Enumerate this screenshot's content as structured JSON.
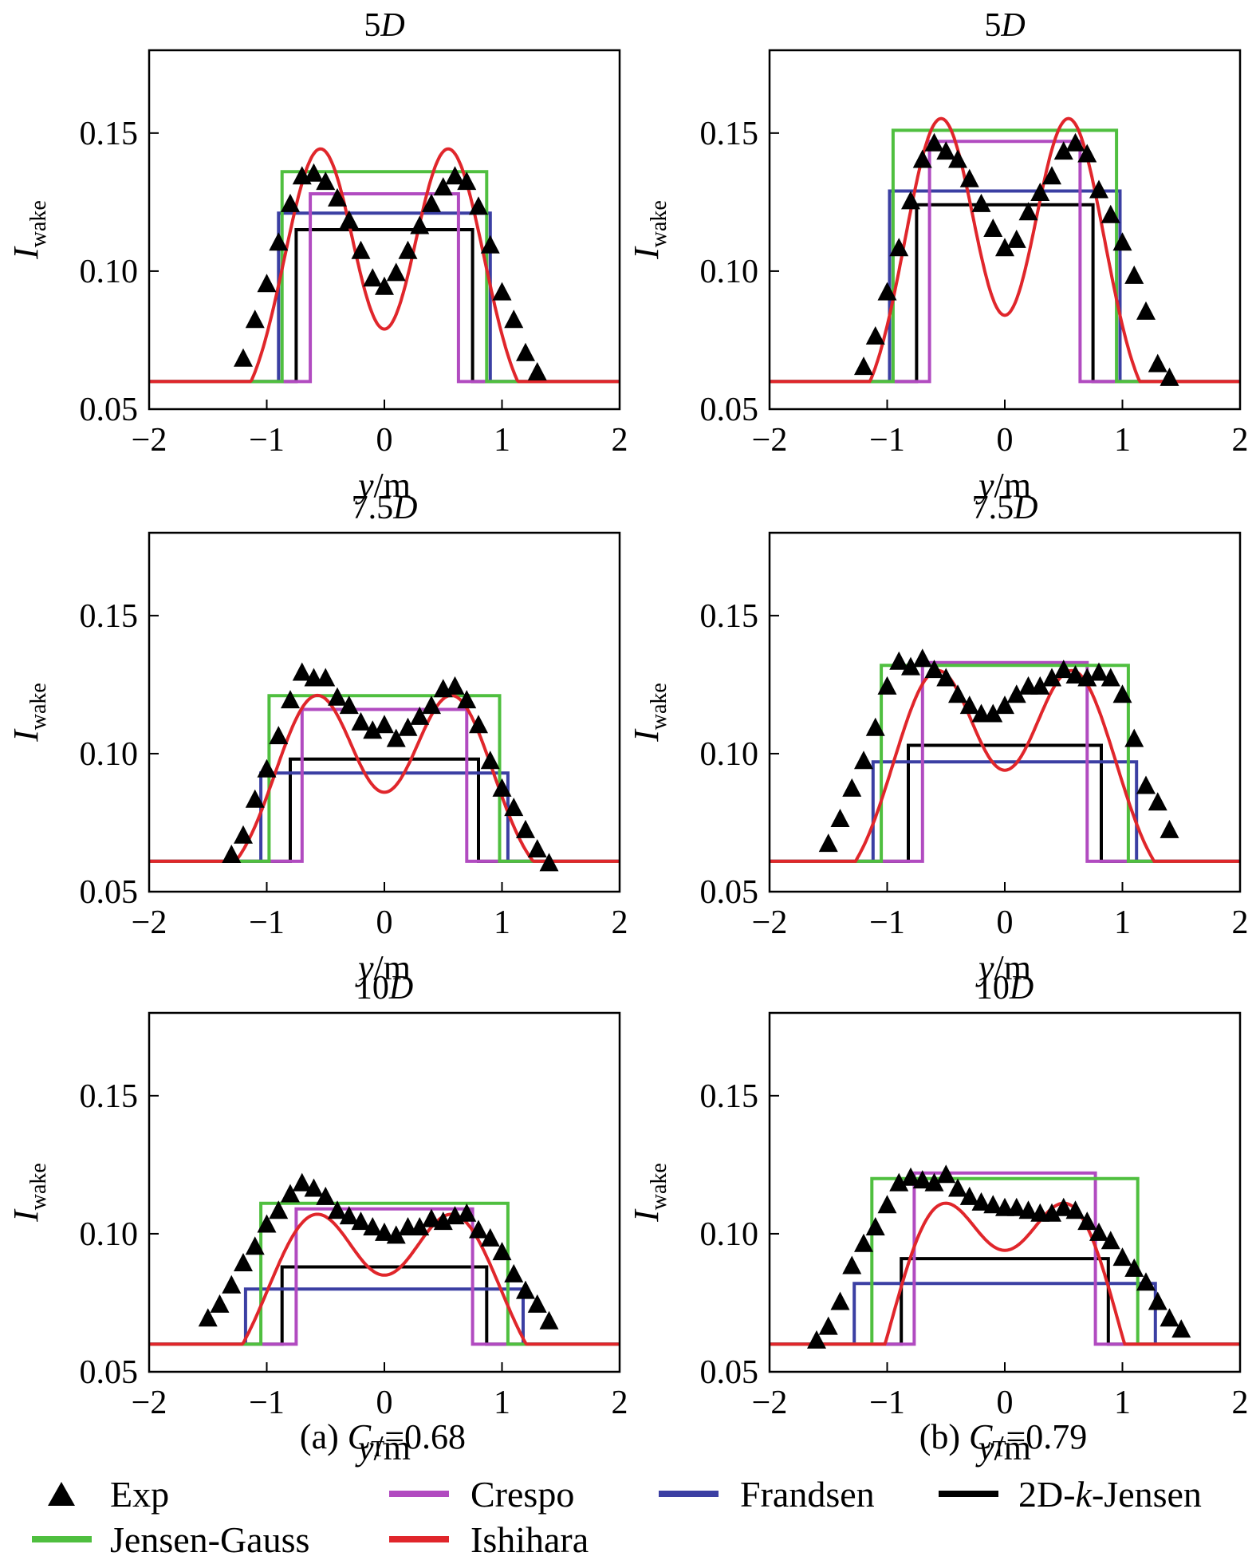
{
  "colors": {
    "Exp": "#000000",
    "Jensen-Gauss": "#4fbf3f",
    "Crespo": "#b14bc0",
    "Ishihara": "#e0262b",
    "Frandsen": "#3b3fa3",
    "2D-k-Jensen": "#000000"
  },
  "legend": {
    "exp": "Exp",
    "jensen_gauss": "Jensen-Gauss",
    "crespo": "Crespo",
    "ishihara": "Ishihara",
    "frandsen": "Frandsen",
    "jensen2d_prefix": "2D-",
    "jensen2d_k": "k",
    "jensen2d_suffix": "-Jensen"
  },
  "captions": {
    "a_prefix": "(a) ",
    "a_var": "C",
    "a_sub": "T",
    "a_value": "=0.68",
    "b_prefix": "(b) ",
    "b_var": "C",
    "b_sub": "T",
    "b_value": "=0.79"
  },
  "axis_text": {
    "ylabel_var": "I",
    "ylabel_sub": "wake",
    "xlabel_var": "y",
    "xlabel_unit": "/m"
  },
  "chart_data": [
    {
      "type": "line",
      "title_num": "5",
      "title_unit": "D",
      "xlabel": "y/m",
      "ylabel": "I_wake",
      "xlim": [
        -2,
        2
      ],
      "ylim": [
        0.05,
        0.18
      ],
      "xticks": [
        -2,
        -1,
        0,
        1,
        2
      ],
      "yticks": [
        0.05,
        0.1,
        0.15
      ],
      "exp": {
        "x": [
          -1.2,
          -1.1,
          -1.0,
          -0.9,
          -0.8,
          -0.7,
          -0.6,
          -0.5,
          -0.4,
          -0.3,
          -0.2,
          -0.1,
          0.0,
          0.1,
          0.2,
          0.3,
          0.4,
          0.5,
          0.6,
          0.7,
          0.8,
          0.9,
          1.0,
          1.1,
          1.2,
          1.3
        ],
        "y": [
          0.068,
          0.082,
          0.095,
          0.11,
          0.124,
          0.134,
          0.135,
          0.132,
          0.126,
          0.118,
          0.107,
          0.097,
          0.094,
          0.099,
          0.107,
          0.116,
          0.124,
          0.13,
          0.134,
          0.132,
          0.123,
          0.109,
          0.092,
          0.082,
          0.07,
          0.063
        ]
      },
      "models": {
        "jensen_gauss": {
          "half_width": 0.87,
          "value": 0.136
        },
        "crespo": {
          "half_width": 0.63,
          "value": 0.128
        },
        "frandsen": {
          "half_width": 0.9,
          "value": 0.121
        },
        "jensen2d": {
          "half_width": 0.75,
          "value": 0.115
        }
      },
      "ishihara": {
        "peak": 0.144,
        "center": 0.079,
        "peak_x": 0.52,
        "sigma": 0.33
      },
      "baseline": 0.06
    },
    {
      "type": "line",
      "title_num": "5",
      "title_unit": "D",
      "xlabel": "y/m",
      "ylabel": "I_wake",
      "xlim": [
        -2,
        2
      ],
      "ylim": [
        0.05,
        0.18
      ],
      "xticks": [
        -2,
        -1,
        0,
        1,
        2
      ],
      "yticks": [
        0.05,
        0.1,
        0.15
      ],
      "exp": {
        "x": [
          -1.2,
          -1.1,
          -1.0,
          -0.9,
          -0.8,
          -0.7,
          -0.6,
          -0.5,
          -0.4,
          -0.3,
          -0.2,
          -0.1,
          0.0,
          0.1,
          0.2,
          0.3,
          0.4,
          0.5,
          0.6,
          0.7,
          0.8,
          0.9,
          1.0,
          1.1,
          1.2,
          1.3,
          1.4
        ],
        "y": [
          0.065,
          0.076,
          0.092,
          0.108,
          0.125,
          0.14,
          0.146,
          0.143,
          0.14,
          0.133,
          0.124,
          0.115,
          0.108,
          0.111,
          0.121,
          0.128,
          0.134,
          0.143,
          0.146,
          0.142,
          0.129,
          0.12,
          0.11,
          0.098,
          0.085,
          0.066,
          0.061
        ]
      },
      "models": {
        "jensen_gauss": {
          "half_width": 0.95,
          "value": 0.151
        },
        "crespo": {
          "half_width": 0.64,
          "value": 0.147
        },
        "frandsen": {
          "half_width": 0.98,
          "value": 0.129
        },
        "jensen2d": {
          "half_width": 0.75,
          "value": 0.124
        }
      },
      "ishihara": {
        "peak": 0.155,
        "center": 0.084,
        "peak_x": 0.52,
        "sigma": 0.33
      },
      "baseline": 0.06
    },
    {
      "type": "line",
      "title_num": "7.5",
      "title_unit": "D",
      "xlabel": "y/m",
      "ylabel": "I_wake",
      "xlim": [
        -2,
        2
      ],
      "ylim": [
        0.05,
        0.18
      ],
      "xticks": [
        -2,
        -1,
        0,
        1,
        2
      ],
      "yticks": [
        0.05,
        0.1,
        0.15
      ],
      "exp": {
        "x": [
          -1.3,
          -1.2,
          -1.1,
          -1.0,
          -0.9,
          -0.8,
          -0.7,
          -0.6,
          -0.5,
          -0.4,
          -0.3,
          -0.2,
          -0.1,
          0.0,
          0.1,
          0.2,
          0.3,
          0.4,
          0.5,
          0.6,
          0.7,
          0.8,
          0.9,
          1.0,
          1.1,
          1.2,
          1.3,
          1.4
        ],
        "y": [
          0.063,
          0.07,
          0.083,
          0.094,
          0.106,
          0.119,
          0.129,
          0.127,
          0.127,
          0.12,
          0.117,
          0.111,
          0.108,
          0.11,
          0.105,
          0.109,
          0.113,
          0.117,
          0.123,
          0.124,
          0.119,
          0.11,
          0.097,
          0.087,
          0.08,
          0.072,
          0.065,
          0.06
        ]
      },
      "models": {
        "jensen_gauss": {
          "half_width": 0.98,
          "value": 0.121
        },
        "crespo": {
          "half_width": 0.7,
          "value": 0.116
        },
        "frandsen": {
          "half_width": 1.05,
          "value": 0.093
        },
        "jensen2d": {
          "half_width": 0.8,
          "value": 0.098
        }
      },
      "ishihara": {
        "peak": 0.121,
        "center": 0.086,
        "peak_x": 0.55,
        "sigma": 0.38
      },
      "baseline": 0.061
    },
    {
      "type": "line",
      "title_num": "7.5",
      "title_unit": "D",
      "xlabel": "y/m",
      "ylabel": "I_wake",
      "xlim": [
        -2,
        2
      ],
      "ylim": [
        0.05,
        0.18
      ],
      "xticks": [
        -2,
        -1,
        0,
        1,
        2
      ],
      "yticks": [
        0.05,
        0.1,
        0.15
      ],
      "exp": {
        "x": [
          -1.5,
          -1.4,
          -1.3,
          -1.2,
          -1.1,
          -1.0,
          -0.9,
          -0.8,
          -0.7,
          -0.6,
          -0.5,
          -0.4,
          -0.3,
          -0.2,
          -0.1,
          0.0,
          0.1,
          0.2,
          0.3,
          0.4,
          0.5,
          0.6,
          0.7,
          0.8,
          0.9,
          1.0,
          1.1,
          1.2,
          1.3,
          1.4
        ],
        "y": [
          0.067,
          0.076,
          0.087,
          0.097,
          0.109,
          0.124,
          0.133,
          0.131,
          0.134,
          0.13,
          0.127,
          0.121,
          0.117,
          0.114,
          0.114,
          0.117,
          0.121,
          0.124,
          0.124,
          0.127,
          0.13,
          0.128,
          0.127,
          0.129,
          0.127,
          0.121,
          0.105,
          0.088,
          0.082,
          0.072
        ]
      },
      "models": {
        "jensen_gauss": {
          "half_width": 1.05,
          "value": 0.132
        },
        "crespo": {
          "half_width": 0.7,
          "value": 0.133
        },
        "frandsen": {
          "half_width": 1.12,
          "value": 0.097
        },
        "jensen2d": {
          "half_width": 0.82,
          "value": 0.103
        }
      },
      "ishihara": {
        "peak": 0.13,
        "center": 0.094,
        "peak_x": 0.55,
        "sigma": 0.4
      },
      "baseline": 0.061
    },
    {
      "type": "line",
      "title_num": "10",
      "title_unit": "D",
      "xlabel": "y/m",
      "ylabel": "I_wake",
      "xlim": [
        -2,
        2
      ],
      "ylim": [
        0.05,
        0.18
      ],
      "xticks": [
        -2,
        -1,
        0,
        1,
        2
      ],
      "yticks": [
        0.05,
        0.1,
        0.15
      ],
      "exp": {
        "x": [
          -1.5,
          -1.4,
          -1.3,
          -1.2,
          -1.1,
          -1.0,
          -0.9,
          -0.8,
          -0.7,
          -0.6,
          -0.5,
          -0.4,
          -0.3,
          -0.2,
          -0.1,
          0.0,
          0.1,
          0.2,
          0.3,
          0.4,
          0.5,
          0.6,
          0.7,
          0.8,
          0.9,
          1.0,
          1.1,
          1.2,
          1.3,
          1.4
        ],
        "y": [
          0.069,
          0.074,
          0.081,
          0.089,
          0.095,
          0.103,
          0.108,
          0.114,
          0.118,
          0.116,
          0.113,
          0.108,
          0.106,
          0.104,
          0.102,
          0.1,
          0.099,
          0.102,
          0.102,
          0.105,
          0.104,
          0.106,
          0.107,
          0.101,
          0.098,
          0.093,
          0.085,
          0.079,
          0.074,
          0.068
        ]
      },
      "models": {
        "jensen_gauss": {
          "half_width": 1.05,
          "value": 0.111
        },
        "crespo": {
          "half_width": 0.75,
          "value": 0.109
        },
        "frandsen": {
          "half_width": 1.18,
          "value": 0.08
        },
        "jensen2d": {
          "half_width": 0.87,
          "value": 0.088
        }
      },
      "ishihara": {
        "peak": 0.107,
        "center": 0.085,
        "peak_x": 0.55,
        "sigma": 0.45
      },
      "baseline": 0.06
    },
    {
      "type": "line",
      "title_num": "10",
      "title_unit": "D",
      "xlabel": "y/m",
      "ylabel": "I_wake",
      "xlim": [
        -2,
        2
      ],
      "ylim": [
        0.05,
        0.18
      ],
      "xticks": [
        -2,
        -1,
        0,
        1,
        2
      ],
      "yticks": [
        0.05,
        0.1,
        0.15
      ],
      "exp": {
        "x": [
          -1.6,
          -1.5,
          -1.4,
          -1.3,
          -1.2,
          -1.1,
          -1.0,
          -0.9,
          -0.8,
          -0.7,
          -0.6,
          -0.5,
          -0.4,
          -0.3,
          -0.2,
          -0.1,
          0.0,
          0.1,
          0.2,
          0.3,
          0.4,
          0.5,
          0.6,
          0.7,
          0.8,
          0.9,
          1.0,
          1.1,
          1.2,
          1.3,
          1.4,
          1.5
        ],
        "y": [
          0.061,
          0.066,
          0.075,
          0.088,
          0.096,
          0.102,
          0.11,
          0.118,
          0.12,
          0.119,
          0.118,
          0.121,
          0.116,
          0.113,
          0.111,
          0.11,
          0.109,
          0.109,
          0.108,
          0.107,
          0.107,
          0.109,
          0.108,
          0.104,
          0.1,
          0.097,
          0.091,
          0.087,
          0.082,
          0.075,
          0.069,
          0.065
        ]
      },
      "models": {
        "jensen_gauss": {
          "half_width": 1.13,
          "value": 0.12
        },
        "crespo": {
          "half_width": 0.77,
          "value": 0.122
        },
        "frandsen": {
          "half_width": 1.28,
          "value": 0.082
        },
        "jensen2d": {
          "half_width": 0.88,
          "value": 0.091
        }
      },
      "ishihara": {
        "peak": 0.111,
        "center": 0.094,
        "peak_x": 0.52,
        "sigma": 0.5
      },
      "baseline": 0.06
    }
  ]
}
